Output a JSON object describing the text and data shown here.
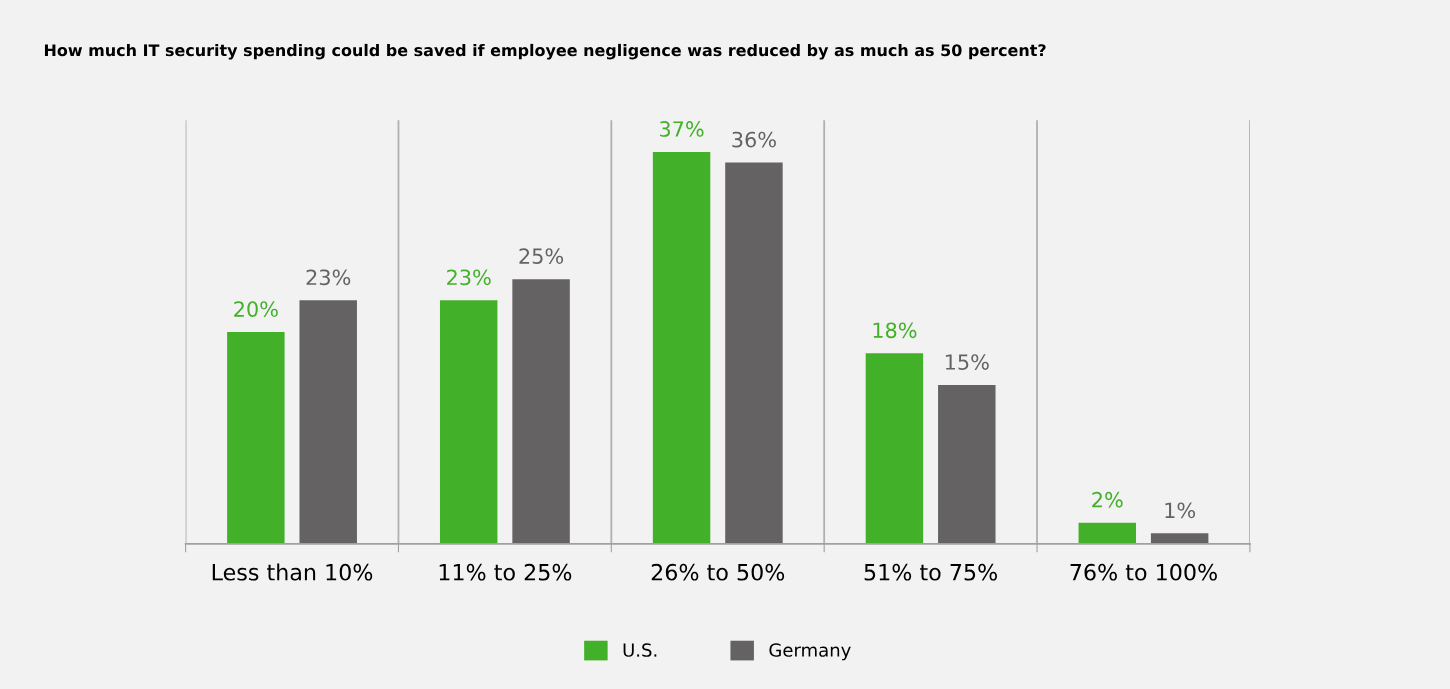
{
  "chart_data": {
    "type": "bar",
    "title": "How much IT security spending could be saved if employee negligence was reduced by as much as 50 percent?",
    "categories": [
      "Less than 10%",
      "11% to 25%",
      "26% to 50%",
      "51% to 75%",
      "76% to 100%"
    ],
    "series": [
      {
        "name": "U.S.",
        "color": "#43b02a",
        "values": [
          20,
          23,
          37,
          18,
          2
        ],
        "value_labels": [
          "20%",
          "23%",
          "37%",
          "18%",
          "2%"
        ]
      },
      {
        "name": "Germany",
        "color": "#646263",
        "values": [
          23,
          25,
          36,
          15,
          1
        ],
        "value_labels": [
          "23%",
          "25%",
          "36%",
          "15%",
          "1%"
        ]
      }
    ],
    "ylim": [
      0,
      40
    ],
    "grid": "x",
    "legend": "bottom",
    "tick_labels": "x"
  }
}
